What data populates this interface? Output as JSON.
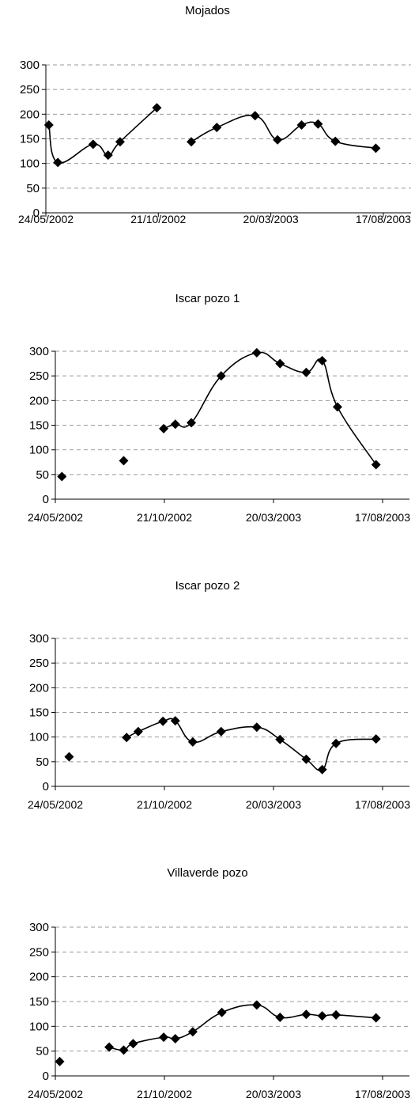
{
  "chart_data": [
    {
      "type": "line",
      "title": "Mojados",
      "ylim": [
        0,
        300
      ],
      "yticks": [
        "0",
        "50",
        "100",
        "150",
        "200",
        "250",
        "300"
      ],
      "xlim": [
        "2002-05-24",
        "2003-09-23"
      ],
      "xticks": [
        {
          "date": "2002-05-24",
          "label": "24/05/2002"
        },
        {
          "date": "2002-10-21",
          "label": "21/10/2002"
        },
        {
          "date": "2003-03-20",
          "label": "20/03/2003"
        },
        {
          "date": "2003-08-17",
          "label": "17/08/2003"
        }
      ],
      "grid": true,
      "marker": "diamond",
      "series": [
        {
          "points": [
            {
              "x": "2002-05-28",
              "y": 178
            },
            {
              "x": "2002-06-09",
              "y": 102
            },
            {
              "x": "2002-07-26",
              "y": 139
            },
            {
              "x": "2002-08-15",
              "y": 117
            },
            {
              "x": "2002-08-31",
              "y": 144
            },
            {
              "x": "2002-10-19",
              "y": 213
            },
            {
              "x": "2002-12-04",
              "y": 144
            },
            {
              "x": "2003-01-07",
              "y": 173
            },
            {
              "x": "2003-02-27",
              "y": 197
            },
            {
              "x": "2003-03-29",
              "y": 148
            },
            {
              "x": "2003-04-30",
              "y": 178
            },
            {
              "x": "2003-05-22",
              "y": 180
            },
            {
              "x": "2003-06-14",
              "y": 145
            },
            {
              "x": "2003-08-07",
              "y": 131
            }
          ],
          "segments": [
            [
              0,
              5
            ],
            [
              6,
              13
            ]
          ]
        }
      ]
    },
    {
      "type": "line",
      "title": "Iscar pozo 1",
      "ylim": [
        0,
        300
      ],
      "yticks": [
        "0",
        "50",
        "100",
        "150",
        "200",
        "250",
        "300"
      ],
      "xlim": [
        "2002-05-24",
        "2003-09-23"
      ],
      "xticks": [
        {
          "date": "2002-05-24",
          "label": "24/05/2002"
        },
        {
          "date": "2002-10-21",
          "label": "21/10/2002"
        },
        {
          "date": "2003-03-20",
          "label": "20/03/2003"
        },
        {
          "date": "2003-08-17",
          "label": "17/08/2003"
        }
      ],
      "grid": true,
      "marker": "diamond",
      "series": [
        {
          "points": [
            {
              "x": "2002-06-02",
              "y": 46
            },
            {
              "x": "2002-08-26",
              "y": 78
            },
            {
              "x": "2002-10-20",
              "y": 143
            },
            {
              "x": "2002-11-05",
              "y": 152
            },
            {
              "x": "2002-11-27",
              "y": 155
            },
            {
              "x": "2003-01-07",
              "y": 250
            },
            {
              "x": "2003-02-25",
              "y": 297
            },
            {
              "x": "2003-03-29",
              "y": 275
            },
            {
              "x": "2003-05-04",
              "y": 257
            },
            {
              "x": "2003-05-26",
              "y": 281
            },
            {
              "x": "2003-06-16",
              "y": 187
            },
            {
              "x": "2003-08-08",
              "y": 70
            }
          ],
          "segments": [
            [
              2,
              11
            ]
          ]
        }
      ]
    },
    {
      "type": "line",
      "title": "Iscar pozo 2",
      "ylim": [
        0,
        300
      ],
      "yticks": [
        "0",
        "50",
        "100",
        "150",
        "200",
        "250",
        "300"
      ],
      "xlim": [
        "2002-05-24",
        "2003-09-23"
      ],
      "xticks": [
        {
          "date": "2002-05-24",
          "label": "24/05/2002"
        },
        {
          "date": "2002-10-21",
          "label": "21/10/2002"
        },
        {
          "date": "2003-03-20",
          "label": "20/03/2003"
        },
        {
          "date": "2003-08-17",
          "label": "17/08/2003"
        }
      ],
      "grid": true,
      "marker": "diamond",
      "series": [
        {
          "points": [
            {
              "x": "2002-06-12",
              "y": 60
            },
            {
              "x": "2002-08-30",
              "y": 99
            },
            {
              "x": "2002-09-15",
              "y": 111
            },
            {
              "x": "2002-10-19",
              "y": 132
            },
            {
              "x": "2002-11-05",
              "y": 133
            },
            {
              "x": "2002-11-29",
              "y": 90
            },
            {
              "x": "2003-01-07",
              "y": 111
            },
            {
              "x": "2003-02-25",
              "y": 120
            },
            {
              "x": "2003-03-29",
              "y": 95
            },
            {
              "x": "2003-05-04",
              "y": 55
            },
            {
              "x": "2003-05-26",
              "y": 34
            },
            {
              "x": "2003-06-14",
              "y": 87
            },
            {
              "x": "2003-08-08",
              "y": 96
            }
          ],
          "segments": [
            [
              1,
              12
            ]
          ]
        }
      ]
    },
    {
      "type": "line",
      "title": "Villaverde pozo",
      "ylim": [
        0,
        300
      ],
      "yticks": [
        "0",
        "50",
        "100",
        "150",
        "200",
        "250",
        "300"
      ],
      "xlim": [
        "2002-05-24",
        "2003-09-23"
      ],
      "xticks": [
        {
          "date": "2002-05-24",
          "label": "24/05/2002"
        },
        {
          "date": "2002-10-21",
          "label": "21/10/2002"
        },
        {
          "date": "2003-03-20",
          "label": "20/03/2003"
        },
        {
          "date": "2003-08-17",
          "label": "17/08/2003"
        }
      ],
      "grid": true,
      "marker": "diamond",
      "series": [
        {
          "points": [
            {
              "x": "2002-05-30",
              "y": 29
            },
            {
              "x": "2002-08-06",
              "y": 58
            },
            {
              "x": "2002-08-26",
              "y": 52
            },
            {
              "x": "2002-09-08",
              "y": 65
            },
            {
              "x": "2002-10-20",
              "y": 78
            },
            {
              "x": "2002-11-05",
              "y": 75
            },
            {
              "x": "2002-11-29",
              "y": 89
            },
            {
              "x": "2003-01-08",
              "y": 128
            },
            {
              "x": "2003-02-25",
              "y": 143
            },
            {
              "x": "2003-03-29",
              "y": 118
            },
            {
              "x": "2003-05-04",
              "y": 124
            },
            {
              "x": "2003-05-26",
              "y": 121
            },
            {
              "x": "2003-06-14",
              "y": 123
            },
            {
              "x": "2003-08-08",
              "y": 117
            }
          ],
          "segments": [
            [
              1,
              13
            ]
          ]
        }
      ]
    }
  ]
}
